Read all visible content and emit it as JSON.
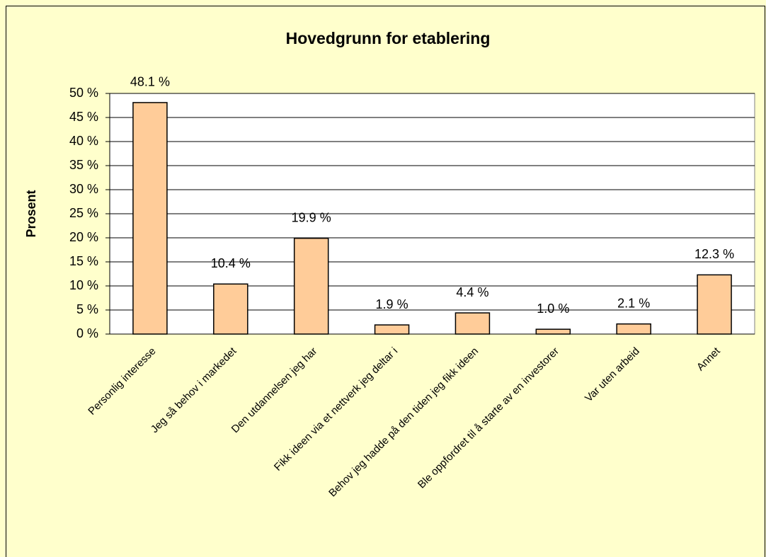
{
  "chart_data": {
    "type": "bar",
    "title": "Hovedgrunn for etablering",
    "y_label": "Prosent",
    "categories": [
      "Personlig interesse",
      "Jeg så behov i markedet",
      "Den utdannelsen jeg har",
      "Fikk ideen via et nettverk jeg deltar i",
      "Behov jeg hadde på den tiden jeg fikk ideen",
      "Ble oppfordret til å starte av en investorer",
      "Var uten arbeid",
      "Annet"
    ],
    "values": [
      48.1,
      10.4,
      19.9,
      1.9,
      4.4,
      1.0,
      2.1,
      12.3
    ],
    "value_labels": [
      "48.1 %",
      "10.4 %",
      "19.9 %",
      "1.9 %",
      "4.4 %",
      "1.0 %",
      "2.1 %",
      "12.3 %"
    ],
    "color": "#ffcc99",
    "ylim": [
      0,
      50
    ],
    "yticks": [
      {
        "value": 0,
        "label": "0 %"
      },
      {
        "value": 5,
        "label": "5 %"
      },
      {
        "value": 10,
        "label": "10 %"
      },
      {
        "value": 15,
        "label": "15 %"
      },
      {
        "value": 20,
        "label": "20 %"
      },
      {
        "value": 25,
        "label": "25 %"
      },
      {
        "value": 30,
        "label": "30 %"
      },
      {
        "value": 35,
        "label": "35 %"
      },
      {
        "value": 40,
        "label": "40 %"
      },
      {
        "value": 45,
        "label": "45 %"
      },
      {
        "value": 50,
        "label": "50 %"
      }
    ],
    "grid": true
  }
}
